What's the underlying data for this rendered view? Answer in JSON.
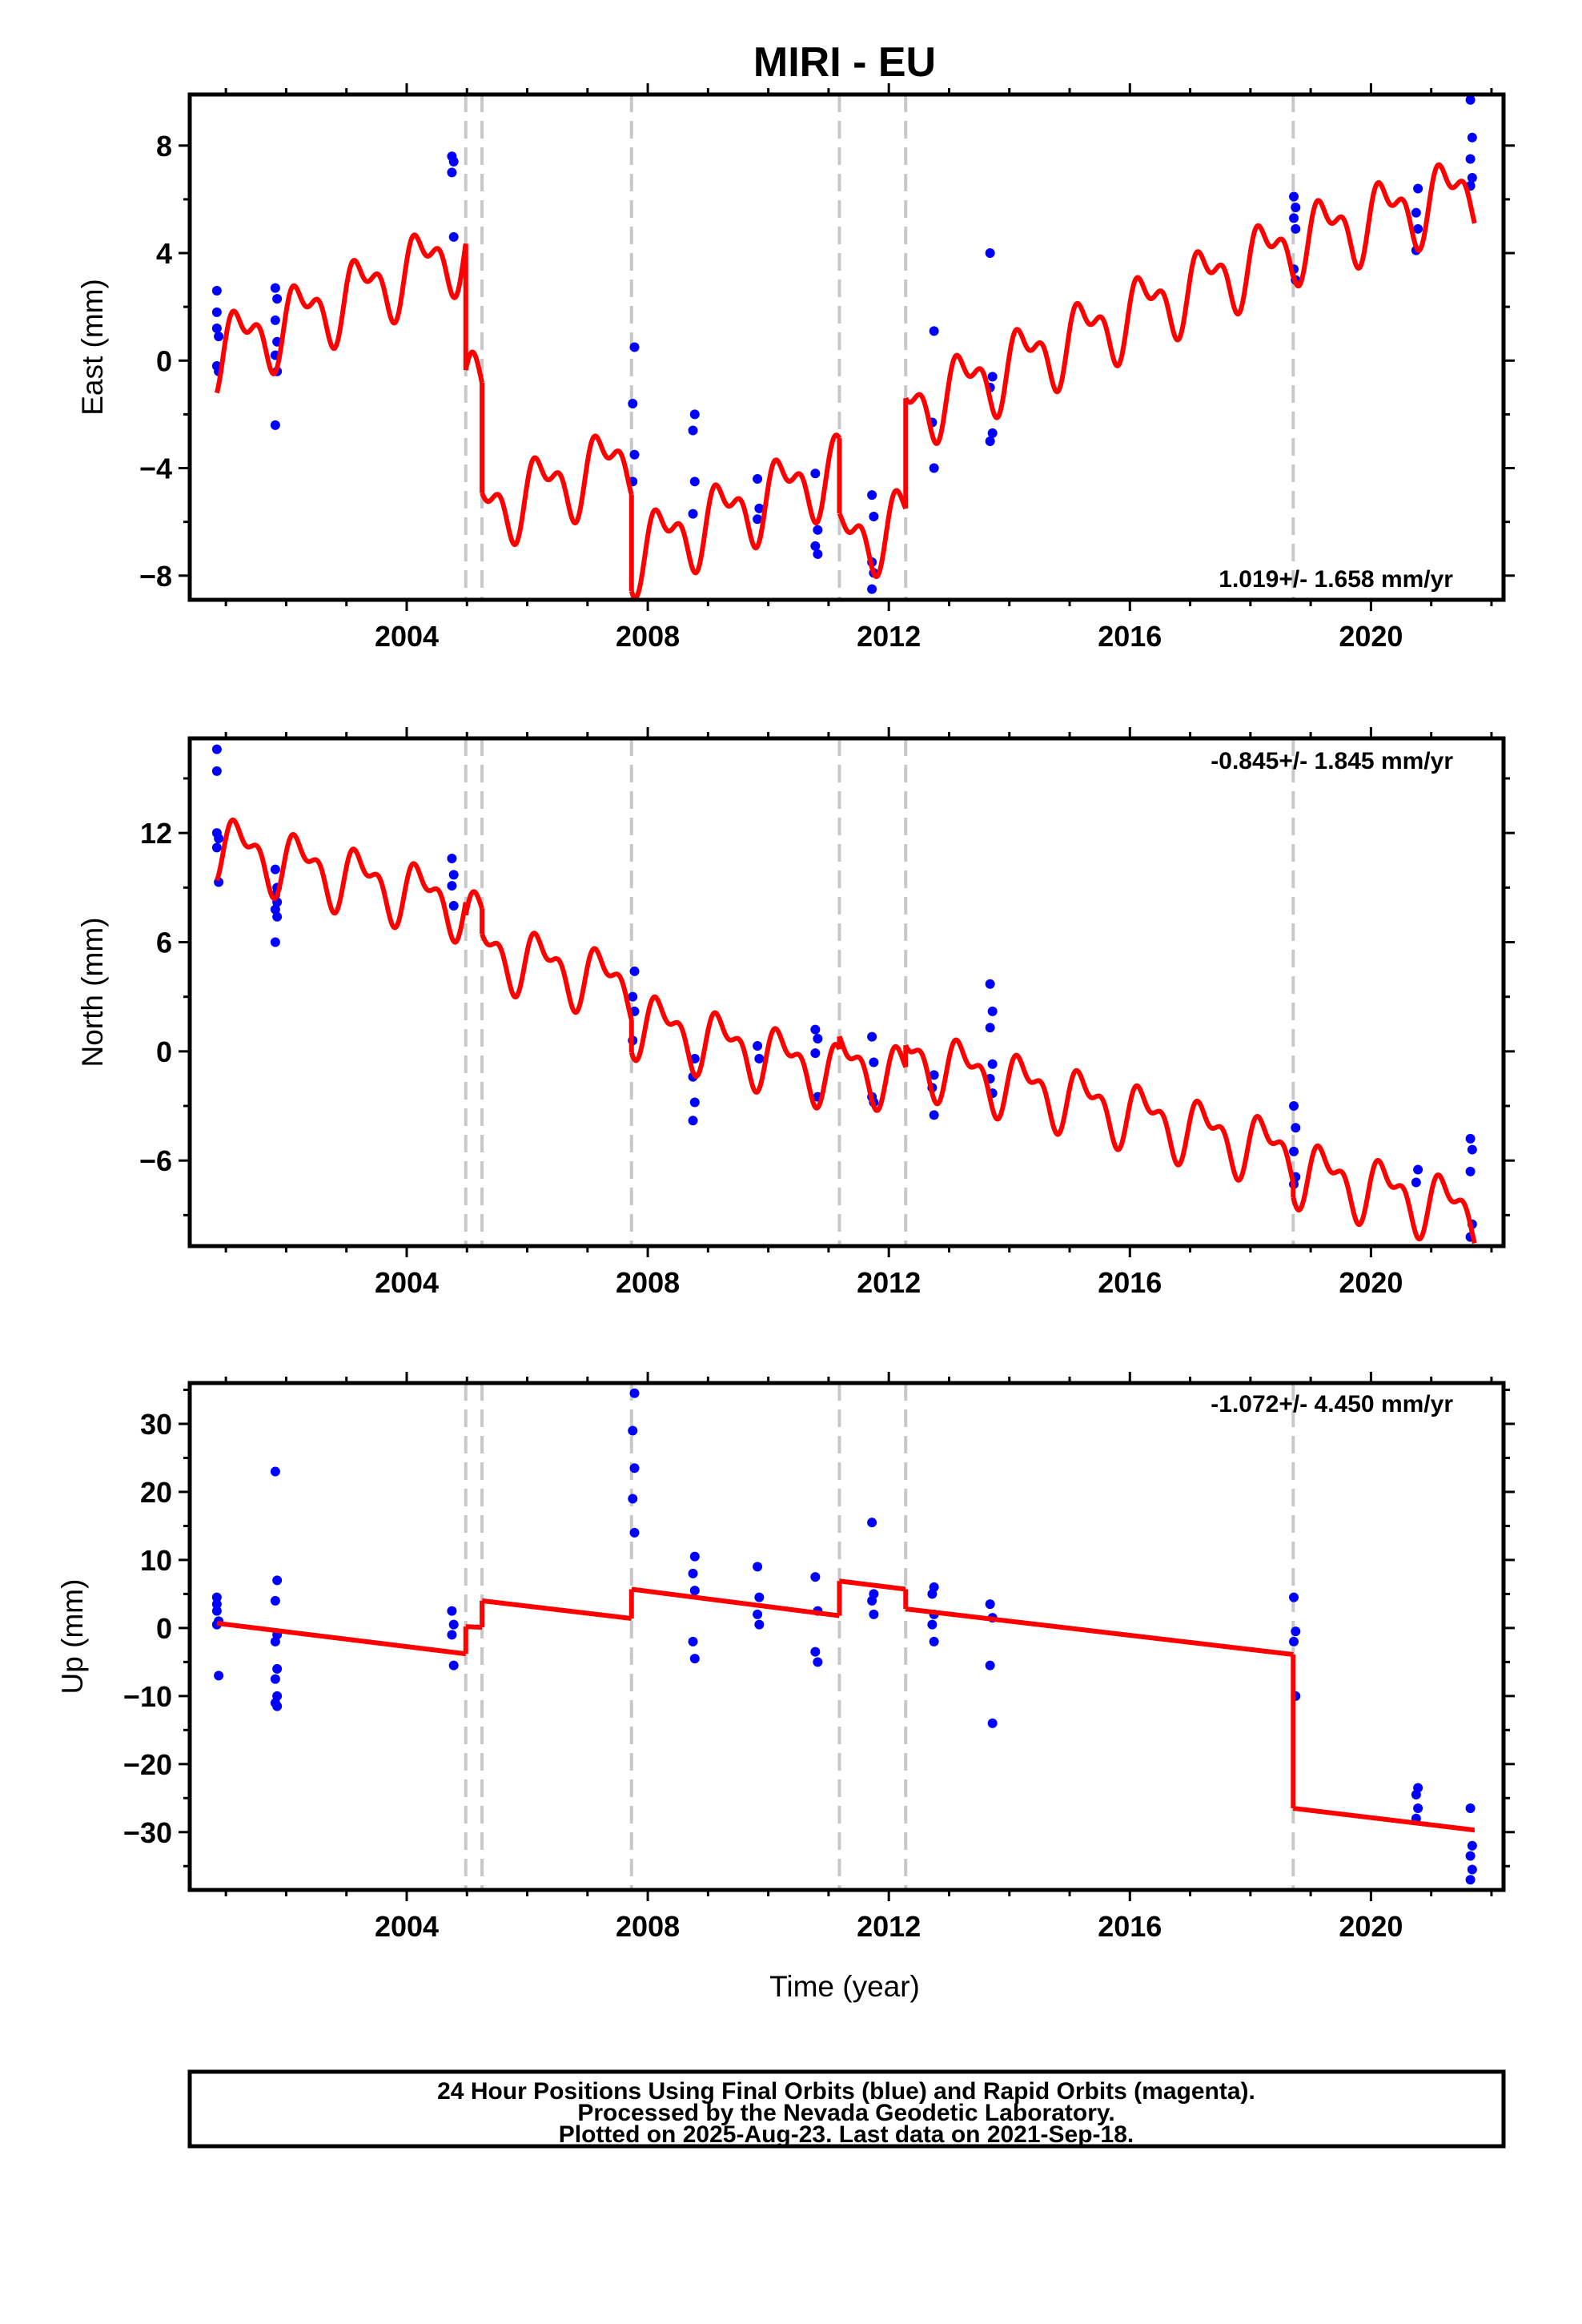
{
  "title": "MIRI - EU",
  "xlabel": "Time (year)",
  "x_ticks": [
    2004,
    2008,
    2012,
    2016,
    2020
  ],
  "xlim": [
    2000.4,
    2022.2
  ],
  "colors": {
    "fit": "#ff0000",
    "points": "#0000ff",
    "offsets": "#c8c8c8"
  },
  "offset_epochs": [
    2004.98,
    2005.25,
    2007.73,
    2011.18,
    2012.28,
    2018.71
  ],
  "footer": {
    "line1": "24 Hour Positions Using Final Orbits (blue) and Rapid Orbits (magenta).",
    "line2": "Processed by the Nevada Geodetic Laboratory.",
    "line3": "Plotted on 2025-Aug-23. Last data on 2021-Sep-18."
  },
  "chart_data": [
    {
      "type": "scatter",
      "component": "east",
      "ylabel": "East (mm)",
      "ylim": [
        -8.9,
        9.9
      ],
      "y_ticks": [
        8,
        4,
        0,
        -4,
        -8
      ],
      "y_tick_labels": [
        "8",
        "4",
        "0",
        "−4",
        "−8"
      ],
      "rate_label": "1.019+/- 1.658 mm/yr",
      "rate_position": "bottom-right",
      "fit": {
        "amplitude": 1.1,
        "segments": [
          {
            "x0": 2000.85,
            "x1": 2004.98,
            "y0": 0.3,
            "y1": 4.2
          },
          {
            "x0": 2004.98,
            "x1": 2005.25,
            "y0": -0.5,
            "y1": -1.5
          },
          {
            "x0": 2005.25,
            "x1": 2007.73,
            "y0": -5.6,
            "y1": -3.6
          },
          {
            "x0": 2007.73,
            "x1": 2011.18,
            "y0": -7.2,
            "y1": -4.0
          },
          {
            "x0": 2011.18,
            "x1": 2012.28,
            "y0": -6.8,
            "y1": -6.0
          },
          {
            "x0": 2012.28,
            "x1": 2018.71,
            "y0": -1.9,
            "y1": 4.3
          },
          {
            "x0": 2018.71,
            "x1": 2021.72,
            "y0": 4.4,
            "y1": 6.4
          }
        ]
      },
      "points": [
        [
          2000.85,
          2.6
        ],
        [
          2000.85,
          1.8
        ],
        [
          2000.85,
          1.2
        ],
        [
          2000.88,
          0.9
        ],
        [
          2000.85,
          -0.2
        ],
        [
          2000.88,
          -0.4
        ],
        [
          2001.82,
          2.7
        ],
        [
          2001.85,
          2.3
        ],
        [
          2001.82,
          1.5
        ],
        [
          2001.85,
          0.7
        ],
        [
          2001.82,
          0.2
        ],
        [
          2001.85,
          -0.4
        ],
        [
          2001.82,
          -2.4
        ],
        [
          2004.75,
          7.6
        ],
        [
          2004.78,
          7.4
        ],
        [
          2004.75,
          7.0
        ],
        [
          2004.78,
          4.6
        ],
        [
          2007.78,
          0.5
        ],
        [
          2007.75,
          -1.6
        ],
        [
          2007.78,
          -3.5
        ],
        [
          2007.75,
          -4.5
        ],
        [
          2008.78,
          -2.0
        ],
        [
          2008.75,
          -2.6
        ],
        [
          2008.78,
          -4.5
        ],
        [
          2008.75,
          -5.7
        ],
        [
          2009.82,
          -4.4
        ],
        [
          2009.85,
          -5.5
        ],
        [
          2009.82,
          -5.9
        ],
        [
          2010.78,
          -4.2
        ],
        [
          2010.82,
          -6.3
        ],
        [
          2010.78,
          -6.9
        ],
        [
          2010.82,
          -7.2
        ],
        [
          2011.72,
          -5.0
        ],
        [
          2011.75,
          -5.8
        ],
        [
          2011.72,
          -7.5
        ],
        [
          2011.75,
          -7.9
        ],
        [
          2011.72,
          -8.5
        ],
        [
          2012.75,
          1.1
        ],
        [
          2012.72,
          -2.3
        ],
        [
          2012.75,
          -4.0
        ],
        [
          2013.68,
          4.0
        ],
        [
          2013.72,
          -0.6
        ],
        [
          2013.68,
          -1.0
        ],
        [
          2013.72,
          -2.7
        ],
        [
          2013.68,
          -3.0
        ],
        [
          2018.72,
          6.1
        ],
        [
          2018.75,
          5.7
        ],
        [
          2018.72,
          5.3
        ],
        [
          2018.75,
          4.9
        ],
        [
          2018.72,
          3.4
        ],
        [
          2018.75,
          3.0
        ],
        [
          2020.78,
          6.4
        ],
        [
          2020.75,
          5.5
        ],
        [
          2020.78,
          4.9
        ],
        [
          2020.75,
          4.1
        ],
        [
          2021.65,
          9.7
        ],
        [
          2021.68,
          8.3
        ],
        [
          2021.65,
          7.5
        ],
        [
          2021.68,
          6.8
        ],
        [
          2021.65,
          6.5
        ]
      ]
    },
    {
      "type": "scatter",
      "component": "north",
      "ylabel": "North (mm)",
      "ylim": [
        -10.7,
        17.2
      ],
      "y_ticks": [
        12,
        6,
        0,
        -6
      ],
      "y_tick_labels": [
        "12",
        "6",
        "0",
        "−6"
      ],
      "rate_label": "-0.845+/- 1.845 mm/yr",
      "rate_position": "top-right",
      "fit": {
        "amplitude": 1.4,
        "segments": [
          {
            "x0": 2000.85,
            "x1": 2004.98,
            "y0": 11.3,
            "y1": 8.0
          },
          {
            "x0": 2004.98,
            "x1": 2005.25,
            "y0": 7.3,
            "y1": 7.0
          },
          {
            "x0": 2005.25,
            "x1": 2007.73,
            "y0": 5.6,
            "y1": 3.5
          },
          {
            "x0": 2007.73,
            "x1": 2011.18,
            "y0": 1.7,
            "y1": -1.3
          },
          {
            "x0": 2011.18,
            "x1": 2012.28,
            "y0": -0.6,
            "y1": -1.5
          },
          {
            "x0": 2012.28,
            "x1": 2018.71,
            "y0": -0.3,
            "y1": -5.7
          },
          {
            "x0": 2018.71,
            "x1": 2021.72,
            "y0": -6.5,
            "y1": -8.9
          }
        ]
      },
      "points": [
        [
          2000.85,
          16.6
        ],
        [
          2000.85,
          15.4
        ],
        [
          2000.85,
          12.0
        ],
        [
          2000.88,
          11.7
        ],
        [
          2000.85,
          11.2
        ],
        [
          2000.88,
          9.3
        ],
        [
          2001.82,
          10.0
        ],
        [
          2001.85,
          9.0
        ],
        [
          2001.82,
          8.6
        ],
        [
          2001.85,
          8.2
        ],
        [
          2001.82,
          7.8
        ],
        [
          2001.85,
          7.4
        ],
        [
          2001.82,
          6.0
        ],
        [
          2004.75,
          10.6
        ],
        [
          2004.78,
          9.7
        ],
        [
          2004.75,
          9.1
        ],
        [
          2004.78,
          8.0
        ],
        [
          2007.78,
          4.4
        ],
        [
          2007.75,
          3.0
        ],
        [
          2007.78,
          2.2
        ],
        [
          2007.75,
          0.6
        ],
        [
          2008.78,
          -0.4
        ],
        [
          2008.75,
          -1.4
        ],
        [
          2008.78,
          -2.8
        ],
        [
          2008.75,
          -3.8
        ],
        [
          2009.82,
          0.3
        ],
        [
          2009.85,
          -0.4
        ],
        [
          2010.78,
          1.2
        ],
        [
          2010.82,
          0.7
        ],
        [
          2010.78,
          -0.1
        ],
        [
          2010.82,
          -2.5
        ],
        [
          2011.72,
          0.8
        ],
        [
          2011.75,
          -0.6
        ],
        [
          2011.72,
          -2.5
        ],
        [
          2011.75,
          -2.8
        ],
        [
          2012.75,
          -1.3
        ],
        [
          2012.72,
          -2.0
        ],
        [
          2012.75,
          -3.5
        ],
        [
          2013.68,
          3.7
        ],
        [
          2013.72,
          2.2
        ],
        [
          2013.68,
          1.3
        ],
        [
          2013.72,
          -0.7
        ],
        [
          2013.68,
          -1.5
        ],
        [
          2013.72,
          -2.3
        ],
        [
          2018.72,
          -3.0
        ],
        [
          2018.75,
          -4.2
        ],
        [
          2018.72,
          -5.5
        ],
        [
          2018.75,
          -6.9
        ],
        [
          2018.72,
          -7.3
        ],
        [
          2020.78,
          -6.5
        ],
        [
          2020.75,
          -7.2
        ],
        [
          2021.65,
          -4.8
        ],
        [
          2021.68,
          -5.4
        ],
        [
          2021.65,
          -6.6
        ],
        [
          2021.68,
          -9.5
        ],
        [
          2021.65,
          -10.2
        ]
      ]
    },
    {
      "type": "scatter",
      "component": "up",
      "ylabel": "Up (mm)",
      "ylim": [
        -38.5,
        36.0
      ],
      "y_ticks": [
        30,
        20,
        10,
        0,
        -10,
        -20,
        -30
      ],
      "y_tick_labels": [
        "30",
        "20",
        "10",
        "0",
        "−10",
        "−20",
        "−30"
      ],
      "rate_label": "-1.072+/- 4.450 mm/yr",
      "rate_position": "top-right",
      "fit": {
        "amplitude": 0,
        "segments": [
          {
            "x0": 2000.85,
            "x1": 2004.98,
            "y0": 0.7,
            "y1": -3.8
          },
          {
            "x0": 2004.98,
            "x1": 2005.25,
            "y0": 0.2,
            "y1": 0.1
          },
          {
            "x0": 2005.25,
            "x1": 2007.73,
            "y0": 4.0,
            "y1": 1.4
          },
          {
            "x0": 2007.73,
            "x1": 2011.18,
            "y0": 5.7,
            "y1": 1.8
          },
          {
            "x0": 2011.18,
            "x1": 2012.28,
            "y0": 6.9,
            "y1": 5.7
          },
          {
            "x0": 2012.28,
            "x1": 2018.71,
            "y0": 2.8,
            "y1": -3.9
          },
          {
            "x0": 2018.71,
            "x1": 2021.72,
            "y0": -26.5,
            "y1": -29.7
          }
        ]
      },
      "points": [
        [
          2000.85,
          4.5
        ],
        [
          2000.85,
          3.5
        ],
        [
          2000.85,
          2.5
        ],
        [
          2000.88,
          1.0
        ],
        [
          2000.85,
          0.5
        ],
        [
          2000.88,
          -7.0
        ],
        [
          2001.82,
          23.0
        ],
        [
          2001.85,
          7.0
        ],
        [
          2001.82,
          4.0
        ],
        [
          2001.85,
          -1.0
        ],
        [
          2001.82,
          -2.0
        ],
        [
          2001.85,
          -6.0
        ],
        [
          2001.82,
          -7.5
        ],
        [
          2001.85,
          -10.0
        ],
        [
          2001.82,
          -11.0
        ],
        [
          2001.85,
          -11.5
        ],
        [
          2004.75,
          2.5
        ],
        [
          2004.78,
          0.5
        ],
        [
          2004.75,
          -1.0
        ],
        [
          2004.78,
          -5.5
        ],
        [
          2007.78,
          34.5
        ],
        [
          2007.75,
          29.0
        ],
        [
          2007.78,
          23.5
        ],
        [
          2007.75,
          19.0
        ],
        [
          2007.78,
          14.0
        ],
        [
          2008.78,
          10.5
        ],
        [
          2008.75,
          8.0
        ],
        [
          2008.78,
          5.5
        ],
        [
          2008.75,
          -2.0
        ],
        [
          2008.78,
          -4.5
        ],
        [
          2009.82,
          9.0
        ],
        [
          2009.85,
          4.5
        ],
        [
          2009.82,
          2.0
        ],
        [
          2009.85,
          0.5
        ],
        [
          2010.78,
          7.5
        ],
        [
          2010.82,
          2.5
        ],
        [
          2010.78,
          -3.5
        ],
        [
          2010.82,
          -5.0
        ],
        [
          2011.72,
          15.5
        ],
        [
          2011.75,
          5.0
        ],
        [
          2011.72,
          4.0
        ],
        [
          2011.75,
          2.0
        ],
        [
          2012.75,
          6.0
        ],
        [
          2012.72,
          5.0
        ],
        [
          2012.75,
          2.0
        ],
        [
          2012.72,
          0.5
        ],
        [
          2012.75,
          -2.0
        ],
        [
          2013.68,
          3.5
        ],
        [
          2013.72,
          1.5
        ],
        [
          2013.68,
          -5.5
        ],
        [
          2013.72,
          -14.0
        ],
        [
          2018.72,
          4.5
        ],
        [
          2018.75,
          -0.5
        ],
        [
          2018.72,
          -2.0
        ],
        [
          2018.75,
          -10.0
        ],
        [
          2020.78,
          -23.5
        ],
        [
          2020.75,
          -24.5
        ],
        [
          2020.78,
          -26.5
        ],
        [
          2020.75,
          -28.0
        ],
        [
          2021.65,
          -26.5
        ],
        [
          2021.68,
          -32.0
        ],
        [
          2021.65,
          -33.5
        ],
        [
          2021.68,
          -35.5
        ],
        [
          2021.65,
          -37.0
        ]
      ]
    }
  ]
}
